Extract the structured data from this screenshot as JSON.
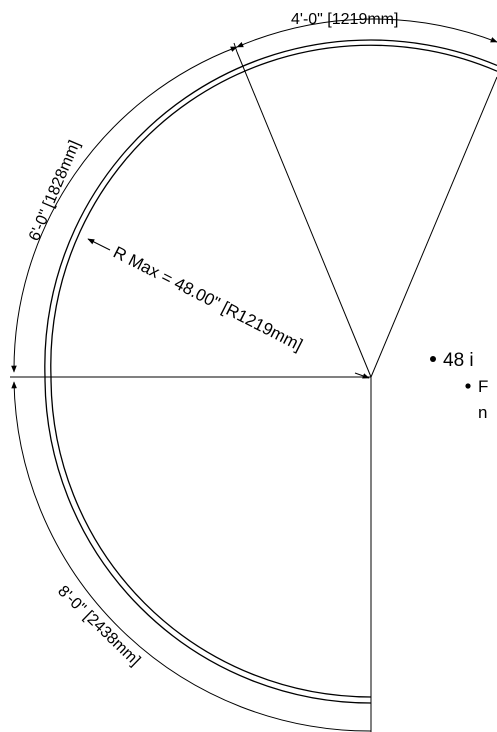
{
  "dimensions": {
    "top_arc": "4'-0\" [1219mm]",
    "upper_left_arc": "6'-0\" [1828mm]",
    "lower_left_arc": "8'-0\" [2438mm]",
    "radius": "R Max = 48.00\" [R1219mm]"
  },
  "notes": {
    "bullet_1": "48 i",
    "bullet_2": "F",
    "bullet_2_cont": "n"
  },
  "colors": {
    "line": "#000000",
    "background": "#ffffff"
  }
}
